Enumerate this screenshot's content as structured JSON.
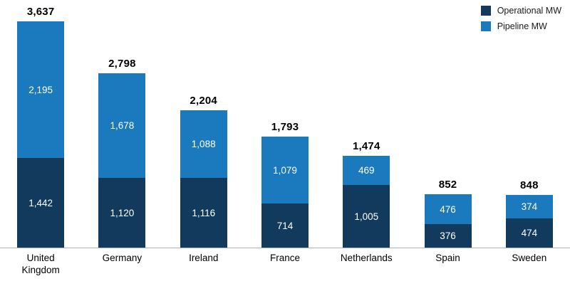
{
  "chart_data": {
    "type": "bar",
    "stacked": true,
    "grid": false,
    "legend_position": "top-right",
    "categories": [
      "United Kingdom",
      "Germany",
      "Ireland",
      "France",
      "Netherlands",
      "Spain",
      "Sweden"
    ],
    "series": [
      {
        "name": "Operational MW",
        "color": "#123a5c",
        "values": [
          1442,
          1120,
          1116,
          714,
          1005,
          376,
          474
        ],
        "value_labels": [
          "1,442",
          "1,120",
          "1,116",
          "714",
          "1,005",
          "376",
          "474"
        ]
      },
      {
        "name": "Pipeline MW",
        "color": "#1a7abd",
        "values": [
          2195,
          1678,
          1088,
          1079,
          469,
          476,
          374
        ],
        "value_labels": [
          "2,195",
          "1,678",
          "1,088",
          "1,079",
          "469",
          "476",
          "374"
        ]
      }
    ],
    "totals": [
      3637,
      2798,
      2204,
      1793,
      1474,
      852,
      848
    ],
    "total_labels": [
      "3,637",
      "2,798",
      "2,204",
      "1,793",
      "1,474",
      "852",
      "848"
    ],
    "ylim": [
      0,
      3637
    ]
  }
}
